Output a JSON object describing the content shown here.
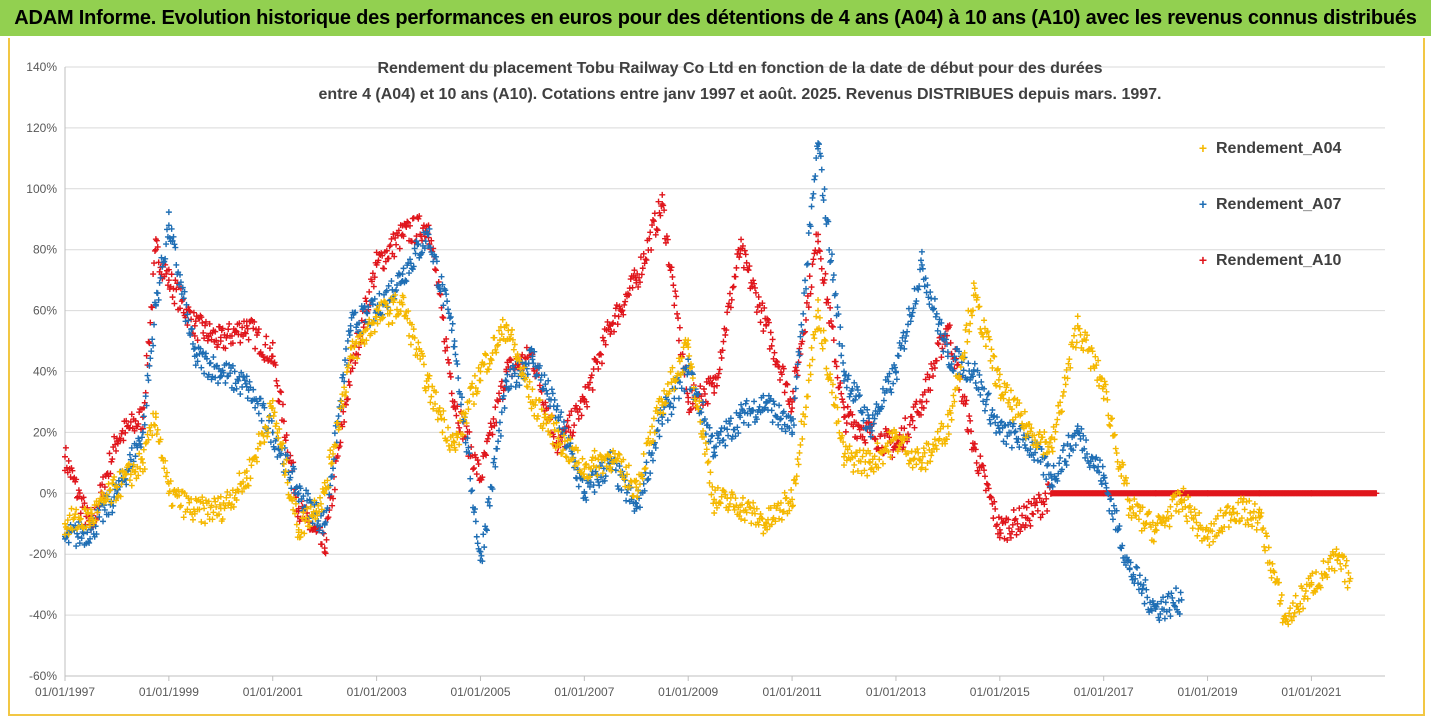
{
  "header": {
    "text": "ADAM Informe. Evolution historique des performances en euros pour des détentions de 4 ans (A04) à 10 ans (A10) avec les revenus connus distribués"
  },
  "colors": {
    "header_bg": "#92d050",
    "border": "#f2c744",
    "A04": "#f5b800",
    "A07": "#1f6eb4",
    "A10": "#e0161c",
    "grid": "#d9d9d9"
  },
  "chart_data": {
    "type": "scatter",
    "title_lines": [
      "Rendement du placement Tobu Railway Co Ltd en fonction de la date de début pour des durées",
      "entre 4 (A04) et 10 ans (A10). Cotations entre janv 1997 et août. 2025. Revenus DISTRIBUES depuis mars. 1997."
    ],
    "xlabel": "",
    "ylabel": "",
    "x_range": [
      "1997-01-01",
      "2022-06-01"
    ],
    "x_tick_labels": [
      "01/01/1997",
      "01/01/1999",
      "01/01/2001",
      "01/01/2003",
      "01/01/2005",
      "01/01/2007",
      "01/01/2009",
      "01/01/2011",
      "01/01/2013",
      "01/01/2015",
      "01/01/2017",
      "01/01/2019",
      "01/01/2021"
    ],
    "ylim": [
      -0.6,
      1.4
    ],
    "y_tick_labels": [
      "140%",
      "120%",
      "100%",
      "80%",
      "60%",
      "40%",
      "20%",
      "0%",
      "-20%",
      "-40%",
      "-60%"
    ],
    "grid": "horizontal",
    "legend_position": "right",
    "marker": "+",
    "series": [
      {
        "name": "Rendement_A04",
        "x": [
          "1997-01",
          "1997-07",
          "1998-01",
          "1998-07",
          "1998-10",
          "1999-01",
          "1999-07",
          "2000-01",
          "2000-07",
          "2001-01",
          "2001-07",
          "2002-01",
          "2002-07",
          "2003-01",
          "2003-07",
          "2004-01",
          "2004-07",
          "2005-01",
          "2005-07",
          "2006-01",
          "2006-07",
          "2007-01",
          "2007-07",
          "2008-01",
          "2008-07",
          "2009-01",
          "2009-07",
          "2010-01",
          "2010-07",
          "2011-01",
          "2011-07",
          "2012-01",
          "2012-07",
          "2013-01",
          "2013-07",
          "2014-01",
          "2014-07",
          "2015-01",
          "2015-07",
          "2016-01",
          "2016-07",
          "2017-01",
          "2017-07",
          "2018-01",
          "2018-07",
          "2019-01",
          "2019-07",
          "2020-01",
          "2020-07",
          "2021-01",
          "2021-07",
          "2021-10"
        ],
        "y": [
          -0.1,
          -0.08,
          0.02,
          0.1,
          0.25,
          0.0,
          -0.06,
          -0.05,
          0.05,
          0.28,
          -0.12,
          0.0,
          0.45,
          0.58,
          0.62,
          0.35,
          0.15,
          0.4,
          0.55,
          0.3,
          0.18,
          0.08,
          0.12,
          0.02,
          0.3,
          0.48,
          -0.02,
          -0.04,
          -0.1,
          -0.02,
          0.6,
          0.12,
          0.1,
          0.18,
          0.1,
          0.22,
          0.65,
          0.35,
          0.22,
          0.15,
          0.55,
          0.35,
          -0.05,
          -0.12,
          -0.02,
          -0.15,
          -0.05,
          -0.08,
          -0.42,
          -0.3,
          -0.22,
          -0.28
        ]
      },
      {
        "name": "Rendement_A07",
        "x": [
          "1997-01",
          "1997-07",
          "1998-01",
          "1998-07",
          "1998-10",
          "1999-01",
          "1999-07",
          "2000-01",
          "2000-07",
          "2001-01",
          "2001-07",
          "2002-01",
          "2002-07",
          "2003-01",
          "2003-07",
          "2004-01",
          "2004-07",
          "2005-01",
          "2005-07",
          "2006-01",
          "2006-07",
          "2007-01",
          "2007-07",
          "2008-01",
          "2008-07",
          "2009-01",
          "2009-07",
          "2010-01",
          "2010-07",
          "2011-01",
          "2011-07",
          "2012-01",
          "2012-07",
          "2013-01",
          "2013-07",
          "2014-01",
          "2014-07",
          "2015-01",
          "2015-07",
          "2016-01",
          "2016-07",
          "2017-01",
          "2017-07",
          "2018-01",
          "2018-07"
        ],
        "y": [
          -0.15,
          -0.12,
          0.0,
          0.2,
          0.62,
          0.88,
          0.45,
          0.4,
          0.35,
          0.2,
          0.0,
          -0.1,
          0.55,
          0.6,
          0.72,
          0.85,
          0.5,
          -0.22,
          0.35,
          0.45,
          0.25,
          0.0,
          0.1,
          -0.05,
          0.25,
          0.4,
          0.15,
          0.25,
          0.3,
          0.2,
          1.15,
          0.4,
          0.22,
          0.4,
          0.75,
          0.45,
          0.4,
          0.2,
          0.18,
          0.05,
          0.2,
          0.05,
          -0.25,
          -0.38,
          -0.35
        ]
      },
      {
        "name": "Rendement_A10",
        "x": [
          "1997-01",
          "1997-07",
          "1998-01",
          "1998-07",
          "1998-10",
          "1999-01",
          "1999-07",
          "2000-01",
          "2000-07",
          "2001-01",
          "2001-07",
          "2002-01",
          "2002-07",
          "2003-01",
          "2003-07",
          "2004-01",
          "2004-07",
          "2005-01",
          "2005-07",
          "2006-01",
          "2006-07",
          "2007-01",
          "2007-07",
          "2008-01",
          "2008-07",
          "2009-01",
          "2009-07",
          "2010-01",
          "2010-07",
          "2011-01",
          "2011-07",
          "2012-01",
          "2012-07",
          "2013-01",
          "2013-07",
          "2014-01",
          "2014-07",
          "2015-01",
          "2015-07",
          "2016-01",
          "2017-01",
          "2018-01",
          "2019-01",
          "2020-01",
          "2021-01",
          "2022-04"
        ],
        "y": [
          0.12,
          -0.12,
          0.18,
          0.25,
          0.8,
          0.7,
          0.55,
          0.5,
          0.55,
          0.45,
          -0.05,
          -0.18,
          0.4,
          0.75,
          0.85,
          0.88,
          0.3,
          0.05,
          0.4,
          0.45,
          0.15,
          0.3,
          0.55,
          0.7,
          0.95,
          0.3,
          0.35,
          0.8,
          0.55,
          0.3,
          0.85,
          0.25,
          0.2,
          0.15,
          0.3,
          0.55,
          0.15,
          -0.12,
          -0.08,
          0.0,
          0.0,
          0.0,
          0.0,
          0.0,
          0.0,
          0.0
        ]
      }
    ]
  }
}
